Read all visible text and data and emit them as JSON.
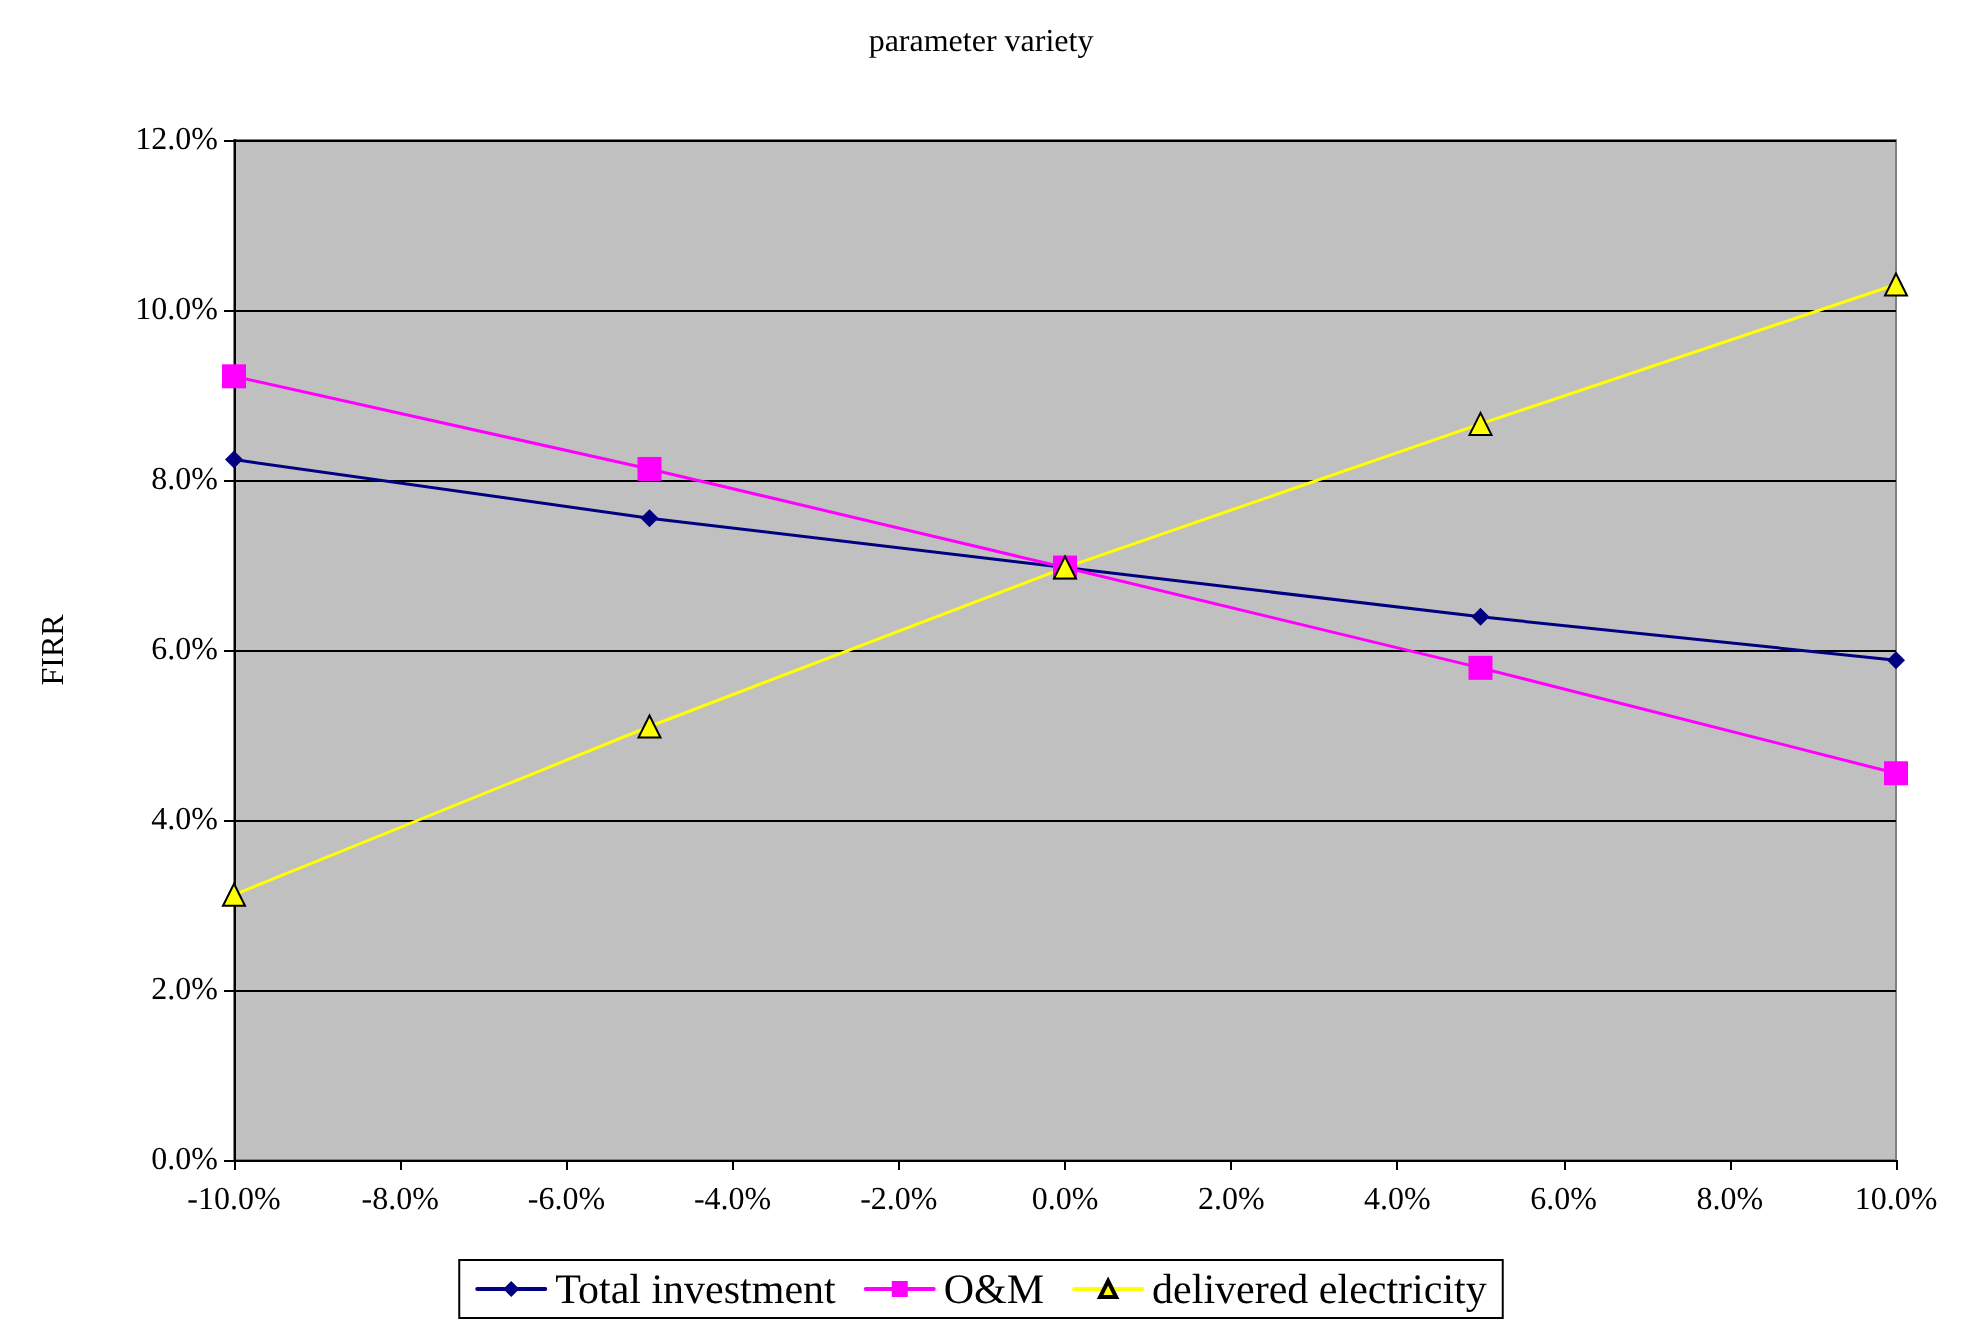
{
  "chart_data": {
    "type": "line",
    "title": "parameter variety",
    "ylabel": "FIRR",
    "x": [
      -10,
      -5,
      0,
      5,
      10
    ],
    "series": [
      {
        "name": "Total investment",
        "color": "#000080",
        "marker": "diamond",
        "values": [
          8.24,
          7.55,
          6.97,
          6.39,
          5.88
        ]
      },
      {
        "name": "O&M",
        "color": "#ff00ff",
        "marker": "square",
        "values": [
          9.22,
          8.13,
          6.97,
          5.79,
          4.55
        ]
      },
      {
        "name": "delivered electricity",
        "color": "#ffff00",
        "marker": "triangle",
        "values": [
          3.12,
          5.1,
          6.97,
          8.66,
          10.3
        ]
      }
    ],
    "xlim": [
      -10,
      10
    ],
    "xticks": [
      {
        "value": -10,
        "label": "-10.0%"
      },
      {
        "value": -8,
        "label": "-8.0%"
      },
      {
        "value": -6,
        "label": "-6.0%"
      },
      {
        "value": -4,
        "label": "-4.0%"
      },
      {
        "value": -2,
        "label": "-2.0%"
      },
      {
        "value": 0,
        "label": "0.0%"
      },
      {
        "value": 2,
        "label": "2.0%"
      },
      {
        "value": 4,
        "label": "4.0%"
      },
      {
        "value": 6,
        "label": "6.0%"
      },
      {
        "value": 8,
        "label": "8.0%"
      },
      {
        "value": 10,
        "label": "10.0%"
      }
    ],
    "ylim": [
      0,
      12
    ],
    "yticks": [
      {
        "value": 0,
        "label": "0.0%"
      },
      {
        "value": 2,
        "label": "2.0%"
      },
      {
        "value": 4,
        "label": "4.0%"
      },
      {
        "value": 6,
        "label": "6.0%"
      },
      {
        "value": 8,
        "label": "8.0%"
      },
      {
        "value": 10,
        "label": "10.0%"
      },
      {
        "value": 12,
        "label": "12.0%"
      }
    ],
    "grid": "y",
    "legend": "bottom",
    "line_style": "solid"
  }
}
